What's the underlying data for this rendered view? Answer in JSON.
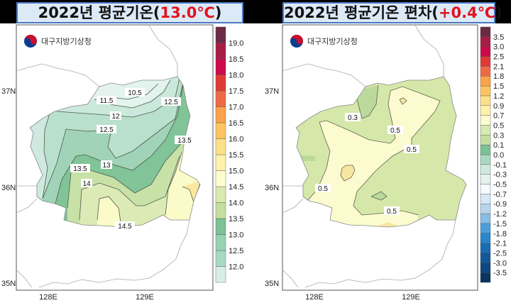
{
  "panels": [
    {
      "title_prefix": "2022년 평균기온(",
      "title_value": "13.0℃",
      "title_suffix": ")",
      "logo_text": "대구지방기상청",
      "contour_labels": [
        "10.5",
        "11.5",
        "12",
        "12.5",
        "12.5",
        "13.5",
        "13",
        "13.5",
        "14",
        "14.5"
      ],
      "colorbar": {
        "labels": [
          "12.0",
          "12.5",
          "13.0",
          "13.5",
          "14.0",
          "14.5",
          "15.0",
          "15.5",
          "16.0",
          "16.5",
          "17.0",
          "17.5",
          "18.0",
          "18.5",
          "19.0"
        ],
        "colors": [
          "#d8eee8",
          "#a9d9c4",
          "#99d1b3",
          "#7cc294",
          "#c4df9f",
          "#d9eab1",
          "#fdfdd0",
          "#fdf1ac",
          "#fde08a",
          "#fdc45f",
          "#fba24a",
          "#ee6a44",
          "#e03a35",
          "#cc0a4c",
          "#a71d44",
          "#6c2a44"
        ]
      }
    },
    {
      "title_prefix": "2022년 평균기온 편차(",
      "title_value": "+0.4℃",
      "title_suffix": ")",
      "logo_text": "대구지방기상청",
      "contour_labels": [
        "0.3",
        "0.5",
        "0.5",
        "0.5",
        "0.5"
      ],
      "colorbar": {
        "labels": [
          "-3.5",
          "-3.0",
          "-2.5",
          "-2.1",
          "-1.8",
          "-1.5",
          "-1.2",
          "-0.9",
          "-0.7",
          "-0.5",
          "-0.3",
          "-0.1",
          "0.0",
          "0.1",
          "0.3",
          "0.5",
          "0.7",
          "0.9",
          "1.2",
          "1.5",
          "1.8",
          "2.1",
          "2.5",
          "3.0",
          "3.5"
        ],
        "colors": [
          "#0a3360",
          "#0f4680",
          "#13589a",
          "#1a6db4",
          "#2b85c9",
          "#4c9ed9",
          "#86bde6",
          "#b5d4ee",
          "#d8e8f6",
          "#f7fbfd",
          "#e4f2ee",
          "#cfe9df",
          "#a9d9c4",
          "#7cc294",
          "#c4df9f",
          "#d9eab1",
          "#fdfdd0",
          "#fdf1ac",
          "#fde08a",
          "#fdc45f",
          "#fba24a",
          "#ee6a44",
          "#e03a35",
          "#cc0a4c",
          "#a71d44",
          "#6c2a44"
        ]
      }
    }
  ],
  "axes": {
    "lat_ticks": [
      "37N",
      "36N",
      "35N"
    ],
    "lon_ticks": [
      "128E",
      "129E"
    ]
  },
  "logo_colors": {
    "red": "#c8102e",
    "blue": "#0b3d91"
  }
}
